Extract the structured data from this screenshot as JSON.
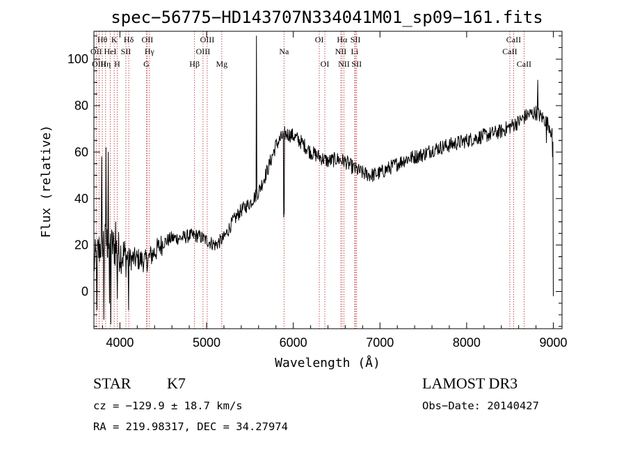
{
  "chart_data": {
    "type": "line",
    "title": "spec−56775−HD143707N334041M01_sp09−161.fits",
    "xlabel": "Wavelength (Å)",
    "ylabel": "Flux (relative)",
    "xlim": [
      3700,
      9100
    ],
    "ylim": [
      -16,
      112
    ],
    "xticks": [
      4000,
      5000,
      6000,
      7000,
      8000,
      9000
    ],
    "xtick_labels": [
      "4000",
      "5000",
      "6000",
      "7000",
      "8000",
      "9000"
    ],
    "yticks": [
      0,
      20,
      40,
      60,
      80,
      100
    ],
    "ytick_labels": [
      "0",
      "20",
      "40",
      "60",
      "80",
      "100"
    ],
    "grid": false,
    "series": [
      {
        "name": "flux",
        "continuum": [
          [
            3700,
            12
          ],
          [
            3800,
            22
          ],
          [
            3900,
            20
          ],
          [
            4000,
            17
          ],
          [
            4100,
            14
          ],
          [
            4200,
            14
          ],
          [
            4300,
            13
          ],
          [
            4400,
            17
          ],
          [
            4500,
            21
          ],
          [
            4600,
            23
          ],
          [
            4700,
            23
          ],
          [
            4800,
            24
          ],
          [
            4900,
            24
          ],
          [
            5000,
            22
          ],
          [
            5100,
            20
          ],
          [
            5200,
            23
          ],
          [
            5300,
            30
          ],
          [
            5400,
            35
          ],
          [
            5500,
            38
          ],
          [
            5600,
            43
          ],
          [
            5700,
            52
          ],
          [
            5800,
            63
          ],
          [
            5900,
            68
          ],
          [
            6000,
            67
          ],
          [
            6100,
            64
          ],
          [
            6200,
            60
          ],
          [
            6300,
            58
          ],
          [
            6400,
            56
          ],
          [
            6500,
            57
          ],
          [
            6600,
            56
          ],
          [
            6700,
            53
          ],
          [
            6800,
            51
          ],
          [
            6900,
            50
          ],
          [
            7000,
            51
          ],
          [
            7100,
            53
          ],
          [
            7200,
            55
          ],
          [
            7300,
            57
          ],
          [
            7400,
            58
          ],
          [
            7500,
            59
          ],
          [
            7600,
            61
          ],
          [
            7700,
            62
          ],
          [
            7800,
            63
          ],
          [
            7900,
            64
          ],
          [
            8000,
            65
          ],
          [
            8100,
            66
          ],
          [
            8200,
            67
          ],
          [
            8300,
            68
          ],
          [
            8400,
            69
          ],
          [
            8500,
            71
          ],
          [
            8600,
            73
          ],
          [
            8700,
            76
          ],
          [
            8800,
            77
          ],
          [
            8900,
            74
          ],
          [
            8960,
            71
          ],
          [
            9000,
            65
          ]
        ],
        "features": [
          [
            3735,
            -8
          ],
          [
            3790,
            58
          ],
          [
            3815,
            -12
          ],
          [
            3840,
            62
          ],
          [
            3865,
            60
          ],
          [
            3880,
            -5
          ],
          [
            3895,
            -14
          ],
          [
            3950,
            30
          ],
          [
            3968,
            -3
          ],
          [
            4101,
            -8
          ],
          [
            5577,
            110
          ],
          [
            5890,
            32
          ],
          [
            5896,
            34
          ],
          [
            8820,
            91
          ],
          [
            8920,
            64
          ],
          [
            8990,
            58
          ],
          [
            9000,
            -2
          ]
        ]
      }
    ],
    "line_labels": [
      {
        "name": "Hθ",
        "x": 3797,
        "row": 0
      },
      {
        "name": "OII",
        "x": 3727,
        "row": 1
      },
      {
        "name": "OIII",
        "x": 3760,
        "row": 2
      },
      {
        "name": "Hη",
        "x": 3835,
        "row": 2
      },
      {
        "name": "HeI",
        "x": 3889,
        "row": 1
      },
      {
        "name": "K",
        "x": 3934,
        "row": 0
      },
      {
        "name": "H",
        "x": 3968,
        "row": 2
      },
      {
        "name": "SII",
        "x": 4069,
        "row": 1
      },
      {
        "name": "Hδ",
        "x": 4102,
        "row": 0
      },
      {
        "name": "OII",
        "x": 4317,
        "row": 0
      },
      {
        "name": "Hγ",
        "x": 4341,
        "row": 1
      },
      {
        "name": "G",
        "x": 4305,
        "row": 2
      },
      {
        "name": "Hβ",
        "x": 4861,
        "row": 2
      },
      {
        "name": "OIII",
        "x": 4959,
        "row": 1
      },
      {
        "name": "OIII",
        "x": 5007,
        "row": 0
      },
      {
        "name": "Mg",
        "x": 5175,
        "row": 2
      },
      {
        "name": "Na",
        "x": 5893,
        "row": 1
      },
      {
        "name": "OI",
        "x": 6300,
        "row": 0
      },
      {
        "name": "OI",
        "x": 6364,
        "row": 2
      },
      {
        "name": "Hα",
        "x": 6563,
        "row": 0
      },
      {
        "name": "NII",
        "x": 6548,
        "row": 1
      },
      {
        "name": "NII",
        "x": 6584,
        "row": 2
      },
      {
        "name": "SII",
        "x": 6717,
        "row": 0
      },
      {
        "name": "Li",
        "x": 6708,
        "row": 1
      },
      {
        "name": "SII",
        "x": 6731,
        "row": 2
      },
      {
        "name": "CaII",
        "x": 8542,
        "row": 0
      },
      {
        "name": "CaII",
        "x": 8498,
        "row": 1
      },
      {
        "name": "CaII",
        "x": 8662,
        "row": 2
      }
    ]
  },
  "info": {
    "object_class": "STAR",
    "subclass": "K7",
    "survey": "LAMOST DR3",
    "cz": "cz = −129.9 ± 18.7 km/s",
    "obs_date": "Obs−Date: 20140427",
    "coords": "RA = 219.98317, DEC =  34.27974"
  }
}
